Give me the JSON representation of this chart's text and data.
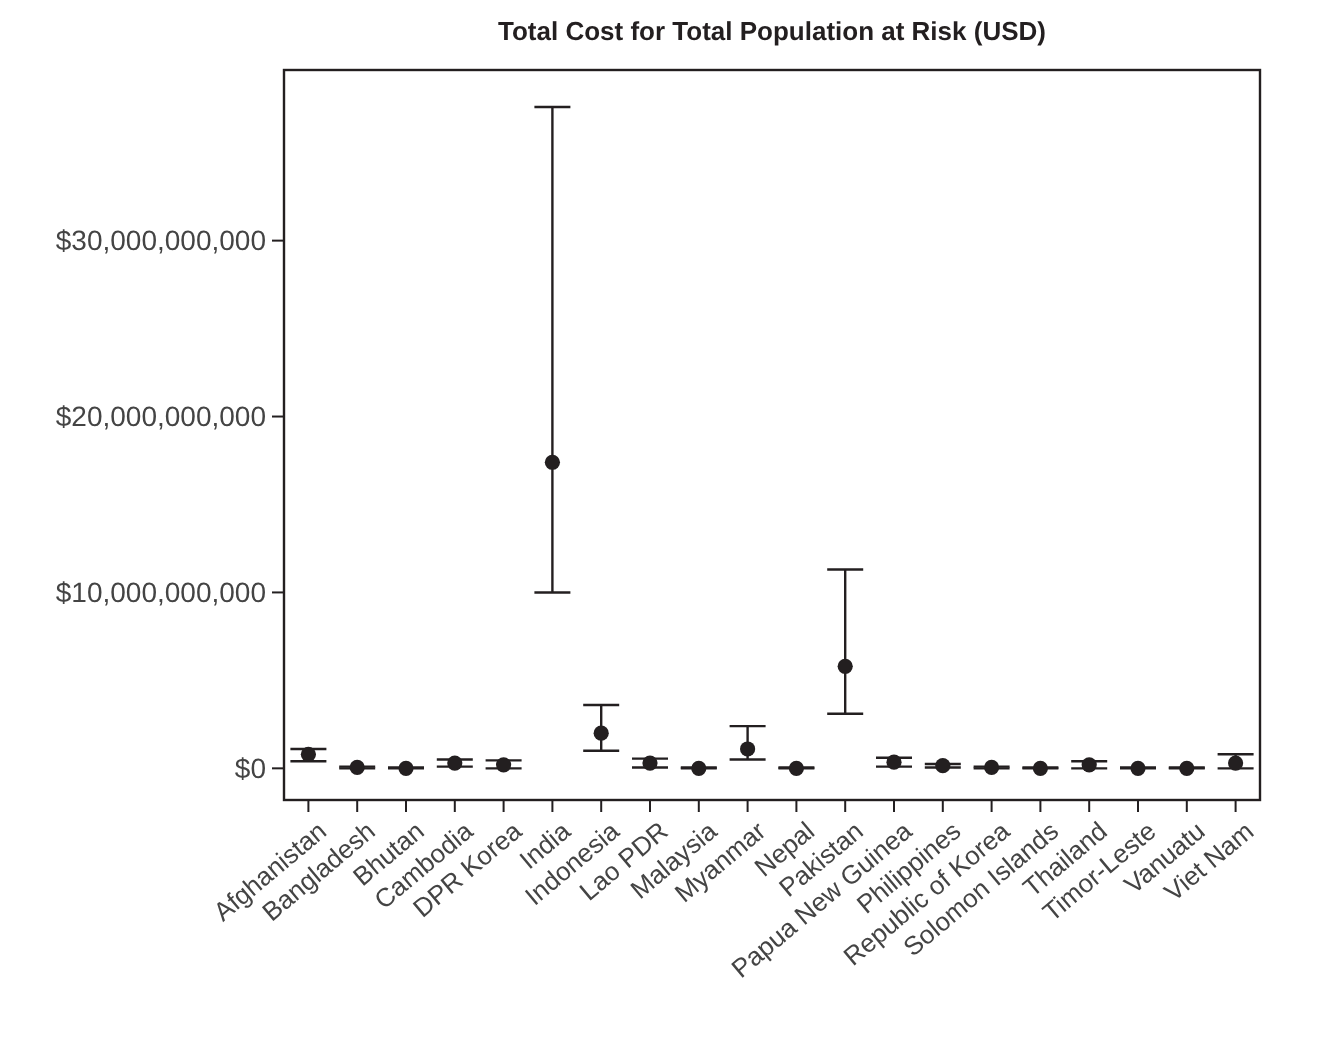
{
  "chart_data": {
    "type": "scatter",
    "title": "Total Cost for Total Population at Risk (USD)",
    "categories": [
      "Afghanistan",
      "Bangladesh",
      "Bhutan",
      "Cambodia",
      "DPR Korea",
      "India",
      "Indonesia",
      "Lao PDR",
      "Malaysia",
      "Myanmar",
      "Nepal",
      "Pakistan",
      "Papua New Guinea",
      "Philippines",
      "Republic of Korea",
      "Solomon Islands",
      "Thailand",
      "Timor-Leste",
      "Vanuatu",
      "Viet Nam"
    ],
    "values": [
      800000000,
      50000000,
      0,
      300000000,
      200000000,
      17400000000,
      2000000000,
      300000000,
      0,
      1100000000,
      0,
      5800000000,
      350000000,
      150000000,
      50000000,
      0,
      200000000,
      0,
      0,
      300000000
    ],
    "errors": [
      [
        400000000,
        1100000000
      ],
      [
        0,
        100000000
      ],
      [
        0,
        50000000
      ],
      [
        100000000,
        500000000
      ],
      [
        0,
        450000000
      ],
      [
        10000000000,
        37600000000
      ],
      [
        1000000000,
        3600000000
      ],
      [
        50000000,
        550000000
      ],
      [
        0,
        50000000
      ],
      [
        500000000,
        2400000000
      ],
      [
        0,
        50000000
      ],
      [
        3100000000,
        11300000000
      ],
      [
        100000000,
        600000000
      ],
      [
        50000000,
        250000000
      ],
      [
        0,
        100000000
      ],
      [
        0,
        50000000
      ],
      [
        0,
        400000000
      ],
      [
        0,
        50000000
      ],
      [
        0,
        50000000
      ],
      [
        0,
        800000000
      ]
    ],
    "color": "#231f20",
    "marker": "circle",
    "ylim": [
      -1800000000,
      39700000000
    ],
    "yticks": [
      {
        "value": 0,
        "label": "$0"
      },
      {
        "value": 10000000000,
        "label": "$10,000,000,000"
      },
      {
        "value": 20000000000,
        "label": "$20,000,000,000"
      },
      {
        "value": 30000000000,
        "label": "$30,000,000,000"
      }
    ],
    "grid": false
  }
}
